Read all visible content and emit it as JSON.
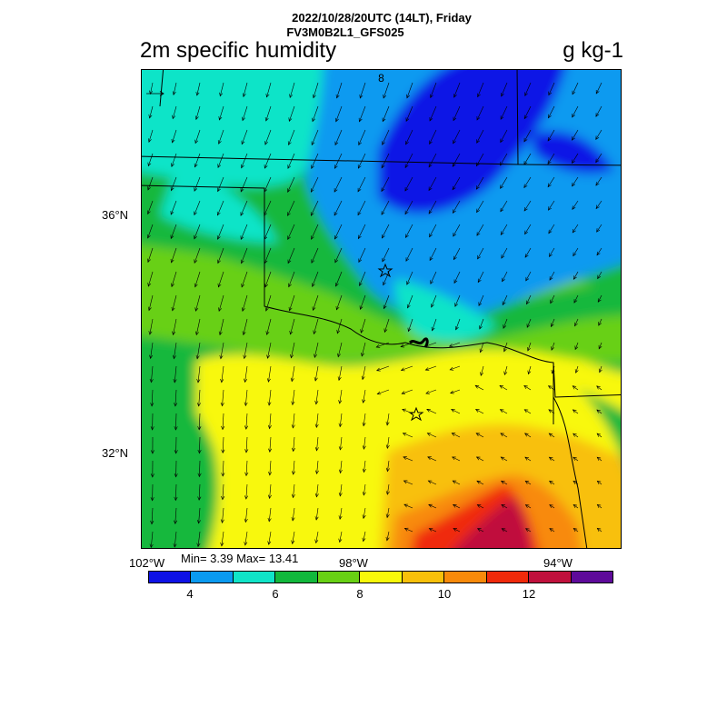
{
  "header": {
    "datetime": "2022/10/28/20UTC (14LT), Friday",
    "model": "FV3M0B2L1_GFS025"
  },
  "variable": {
    "title": "2m specific humidity",
    "units": "g kg-1"
  },
  "axes": {
    "lat_labels": [
      "36°N",
      "32°N"
    ],
    "lon_labels": [
      "102°W",
      "98°W",
      "94°W"
    ]
  },
  "stats": {
    "text": "Min= 3.39 Max= 13.41"
  },
  "wind_reference": {
    "value": "8"
  },
  "colorbar": {
    "colors": [
      "#0e12e6",
      "#0a9af0",
      "#10e4c8",
      "#12b83c",
      "#68d014",
      "#f8f80a",
      "#f8c00a",
      "#f88a0a",
      "#f02a0a",
      "#c0103c",
      "#5e0a9a"
    ],
    "labels": [
      "4",
      "6",
      "8",
      "10",
      "12"
    ]
  }
}
